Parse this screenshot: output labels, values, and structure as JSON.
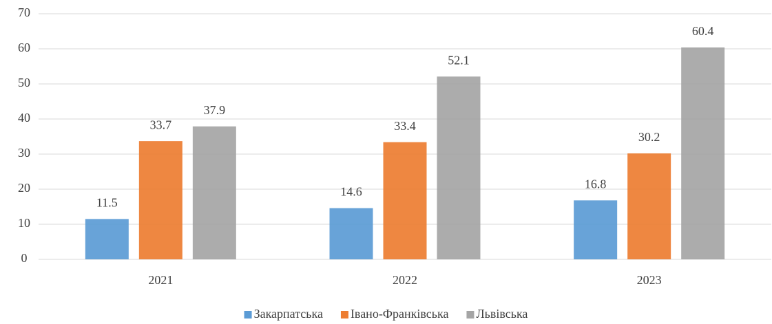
{
  "chart_data": {
    "type": "bar",
    "categories": [
      "2021",
      "2022",
      "2023"
    ],
    "series": [
      {
        "name": "Закарпатська",
        "color": "#5b9bd5",
        "values": [
          11.5,
          14.6,
          16.8
        ]
      },
      {
        "name": "Івано-Франківська",
        "color": "#ed7d31",
        "values": [
          33.7,
          33.4,
          30.2
        ]
      },
      {
        "name": "Львівська",
        "color": "#a5a5a5",
        "values": [
          37.9,
          52.1,
          60.4
        ]
      }
    ],
    "ylim": [
      0,
      70
    ],
    "yticks": [
      0,
      10,
      20,
      30,
      40,
      50,
      60,
      70
    ],
    "grid": true,
    "legend": "bottom"
  }
}
